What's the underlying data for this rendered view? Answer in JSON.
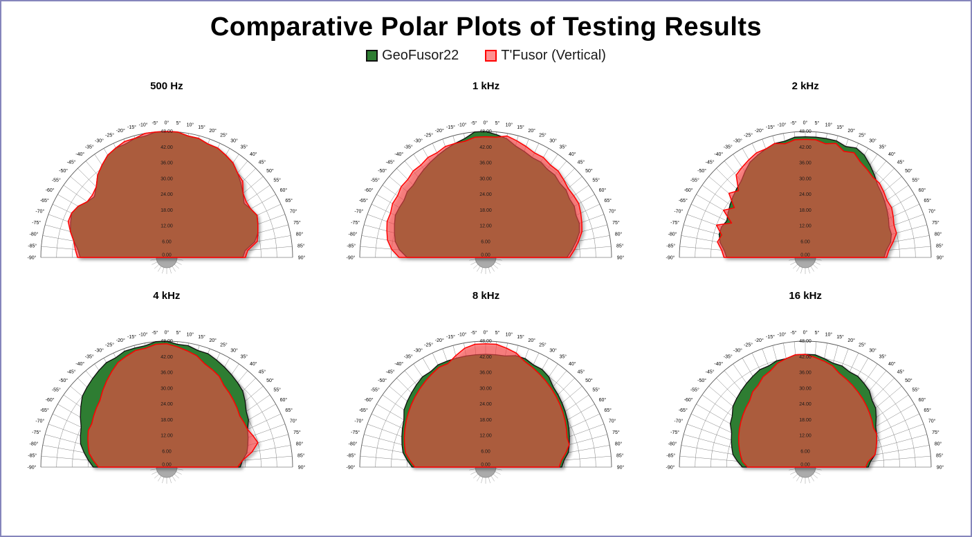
{
  "page": {
    "title": "Comparative Polar Plots of Testing Results",
    "border_color": "#8585bb",
    "background": "#ffffff"
  },
  "legend": [
    {
      "label": "GeoFusor22",
      "fill": "#2E7D32",
      "stroke": "#111111"
    },
    {
      "label": "T'Fusor (Vertical)",
      "fill": "rgba(255,70,70,0.60)",
      "stroke": "#FF0000"
    }
  ],
  "chart_data": {
    "type": "polar-semicircle",
    "title": "Comparative Polar Plots of Testing Results",
    "angle_start": -90,
    "angle_end": 90,
    "angle_step": 5,
    "angle_unit": "°",
    "r_min": 0,
    "r_max": 48,
    "r_step": 6,
    "r_tick_labels": [
      "0.00",
      "6.00",
      "12.00",
      "18.00",
      "24.00",
      "30.00",
      "36.00",
      "42.00",
      "48.00"
    ],
    "grid": true,
    "legend_position": "top",
    "series_styles": [
      {
        "name": "GeoFusor22",
        "fill": "#2E7D32",
        "stroke": "#111111",
        "stroke_width": 1.3
      },
      {
        "name": "T'Fusor (Vertical)",
        "fill": "rgba(255,70,70,0.60)",
        "stroke": "#FF0000",
        "stroke_width": 1.5
      }
    ],
    "charts": [
      {
        "title": "500 Hz",
        "series": [
          {
            "name": "GeoFusor22",
            "values": [
              33,
              34,
              36,
              38,
              39,
              40,
              39,
              37,
              36,
              38,
              41,
              43,
              45,
              46,
              46,
              47,
              47,
              48,
              48,
              48,
              47,
              47,
              46,
              46,
              45,
              44,
              42,
              40,
              38,
              36,
              37,
              38,
              37,
              36,
              34,
              30,
              29
            ]
          },
          {
            "name": "T'Fusor (Vertical)",
            "values": [
              34,
              35,
              36,
              38,
              40,
              40,
              39,
              37,
              37,
              38,
              41,
              43,
              45,
              46,
              47,
              47,
              48,
              48,
              48,
              48,
              47,
              47,
              46,
              46,
              45,
              44,
              42,
              41,
              38,
              37,
              37,
              38,
              37,
              36,
              35,
              31,
              30
            ]
          }
        ]
      },
      {
        "title": "1 kHz",
        "series": [
          {
            "name": "GeoFusor22",
            "values": [
              30,
              33,
              35,
              36,
              37,
              38,
              38,
              38,
              39,
              39,
              40,
              41,
              42,
              43,
              44,
              45,
              46,
              48,
              48,
              47,
              46,
              44,
              43,
              42,
              42,
              41,
              41,
              40,
              40,
              39,
              39,
              38,
              38,
              37,
              35,
              33,
              31
            ]
          },
          {
            "name": "T'Fusor (Vertical)",
            "values": [
              33,
              36,
              38,
              39,
              40,
              40,
              41,
              41,
              42,
              42,
              43,
              43,
              44,
              44,
              45,
              45,
              45,
              46,
              46,
              46,
              47,
              46,
              45,
              44,
              44,
              43,
              43,
              42,
              41,
              41,
              41,
              40,
              39,
              38,
              36,
              34,
              32
            ]
          }
        ]
      },
      {
        "title": "2 kHz",
        "series": [
          {
            "name": "GeoFusor22",
            "values": [
              30,
              31,
              33,
              34,
              34,
              33,
              34,
              35,
              36,
              37,
              38,
              40,
              42,
              43,
              44,
              45,
              45,
              46,
              46,
              46,
              46,
              46,
              45,
              46,
              45,
              43,
              41,
              39,
              38,
              37,
              36,
              35,
              34,
              34,
              33,
              31,
              30
            ]
          },
          {
            "name": "T'Fusor (Vertical)",
            "values": [
              31,
              32,
              34,
              33,
              36,
              31,
              36,
              33,
              38,
              36,
              41,
              42,
              43,
              44,
              44,
              45,
              44,
              45,
              45,
              45,
              44,
              45,
              43,
              44,
              42,
              41,
              40,
              40,
              39,
              38,
              38,
              37,
              36,
              36,
              34,
              32,
              31
            ]
          }
        ]
      },
      {
        "title": "4 kHz",
        "series": [
          {
            "name": "GeoFusor22",
            "values": [
              28,
              30,
              32,
              34,
              35,
              36,
              38,
              40,
              42,
              43,
              44,
              45,
              46,
              46,
              47,
              47,
              47,
              48,
              48,
              47,
              47,
              46,
              46,
              45,
              44,
              43,
              42,
              41,
              39,
              37,
              36,
              34,
              33,
              32,
              31,
              29,
              28
            ]
          },
          {
            "name": "T'Fusor (Vertical)",
            "values": [
              26,
              28,
              30,
              31,
              32,
              33,
              33,
              34,
              35,
              36,
              38,
              40,
              42,
              44,
              45,
              46,
              46,
              47,
              47,
              46,
              45,
              44,
              42,
              41,
              40,
              38,
              37,
              36,
              35,
              34,
              34,
              34,
              35,
              36,
              33,
              29,
              27
            ]
          }
        ]
      },
      {
        "title": "8 kHz",
        "series": [
          {
            "name": "GeoFusor22",
            "values": [
              28,
              30,
              32,
              33,
              34,
              35,
              36,
              38,
              39,
              40,
              41,
              42,
              42,
              43,
              43,
              43,
              43,
              43,
              43,
              43,
              43,
              44,
              44,
              43,
              43,
              42,
              40,
              39,
              38,
              37,
              36,
              35,
              34,
              33,
              32,
              30,
              29
            ]
          },
          {
            "name": "T'Fusor (Vertical)",
            "values": [
              27,
              29,
              31,
              32,
              33,
              34,
              35,
              36,
              37,
              38,
              39,
              40,
              41,
              42,
              42,
              44,
              46,
              47,
              47,
              47,
              46,
              45,
              43,
              42,
              41,
              40,
              39,
              38,
              37,
              36,
              35,
              34,
              33,
              33,
              31,
              29,
              28
            ]
          }
        ]
      },
      {
        "title": "16 kHz",
        "series": [
          {
            "name": "GeoFusor22",
            "values": [
              24,
              26,
              28,
              29,
              30,
              31,
              33,
              34,
              36,
              37,
              38,
              39,
              40,
              41,
              41,
              42,
              42,
              43,
              43,
              43,
              42,
              41,
              41,
              40,
              40,
              39,
              38,
              36,
              35,
              33,
              31,
              30,
              29,
              28,
              27,
              25,
              24
            ]
          },
          {
            "name": "T'Fusor (Vertical)",
            "values": [
              22,
              24,
              25,
              26,
              27,
              28,
              29,
              30,
              31,
              32,
              33,
              35,
              36,
              38,
              39,
              41,
              42,
              43,
              43,
              42,
              41,
              40,
              38,
              37,
              36,
              35,
              34,
              33,
              32,
              31,
              30,
              30,
              29,
              28,
              27,
              24,
              23
            ]
          }
        ]
      }
    ]
  }
}
